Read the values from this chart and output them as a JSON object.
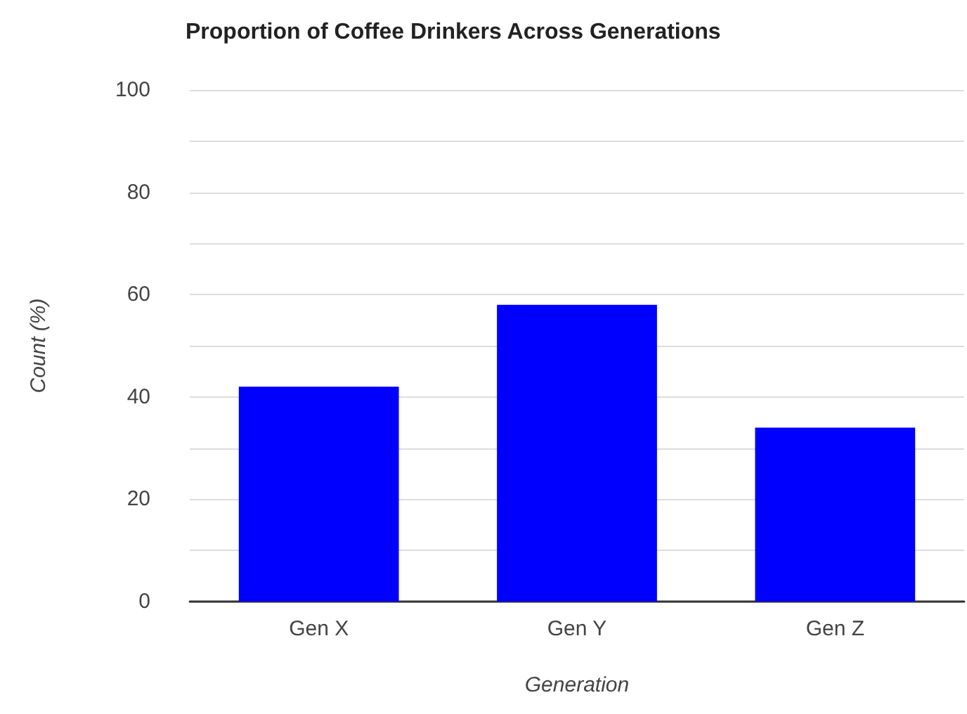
{
  "chart_data": {
    "type": "bar",
    "title": "Proportion of Coffee Drinkers Across Generations",
    "xlabel": "Generation",
    "ylabel": "Count (%)",
    "categories": [
      "Gen X",
      "Gen Y",
      "Gen Z"
    ],
    "values": [
      42,
      58,
      34
    ],
    "color": "#0000ff",
    "ylim": [
      0,
      100
    ],
    "yticks": [
      0,
      {
        "value": 10,
        "label": null
      },
      20,
      {
        "value": 30,
        "label": null
      },
      40,
      {
        "value": 50,
        "label": null
      },
      60,
      {
        "value": 70,
        "label": null
      },
      80,
      {
        "value": 90,
        "label": null
      },
      100
    ],
    "grid": "y"
  }
}
